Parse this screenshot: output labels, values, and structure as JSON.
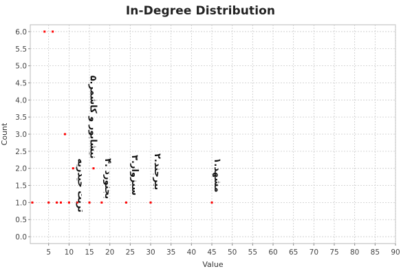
{
  "chart_data": {
    "type": "scatter",
    "title": "In-Degree Distribution",
    "xlabel": "Value",
    "ylabel": "Count",
    "xlim": [
      0.5,
      90
    ],
    "ylim": [
      -0.2,
      6.2
    ],
    "x_ticks": [
      5,
      10,
      15,
      20,
      25,
      30,
      35,
      40,
      45,
      50,
      55,
      60,
      65,
      70,
      75,
      80,
      85,
      90
    ],
    "y_ticks": [
      0.0,
      0.5,
      1.0,
      1.5,
      2.0,
      2.5,
      3.0,
      3.5,
      4.0,
      4.5,
      5.0,
      5.5,
      6.0
    ],
    "grid": true,
    "series": [
      {
        "color": "#ff0000",
        "points": [
          {
            "x": 1,
            "y": 1
          },
          {
            "x": 4,
            "y": 6
          },
          {
            "x": 5,
            "y": 1
          },
          {
            "x": 6,
            "y": 6
          },
          {
            "x": 7,
            "y": 1
          },
          {
            "x": 8,
            "y": 1
          },
          {
            "x": 9,
            "y": 3
          },
          {
            "x": 10,
            "y": 1
          },
          {
            "x": 11,
            "y": 2
          },
          {
            "x": 12,
            "y": 1
          },
          {
            "x": 15,
            "y": 1
          },
          {
            "x": 16,
            "y": 2
          },
          {
            "x": 18,
            "y": 1
          },
          {
            "x": 24,
            "y": 1
          },
          {
            "x": 30,
            "y": 1
          },
          {
            "x": 45,
            "y": 1
          }
        ]
      }
    ],
    "annotations": [
      {
        "text": "تربت حیدریه",
        "x": 12.8,
        "y": 1.5
      },
      {
        "text": "۵.نیشابور و کاشمر",
        "x": 15.8,
        "y": 3.5
      },
      {
        "text": "۴. بجنورد",
        "x": 19.5,
        "y": 1.7
      },
      {
        "text": "۳.سبزوار",
        "x": 26.0,
        "y": 1.8
      },
      {
        "text": "۲.بیرجند",
        "x": 31.6,
        "y": 1.9
      },
      {
        "text": "۱.مشهد",
        "x": 46.3,
        "y": 1.8
      }
    ]
  }
}
